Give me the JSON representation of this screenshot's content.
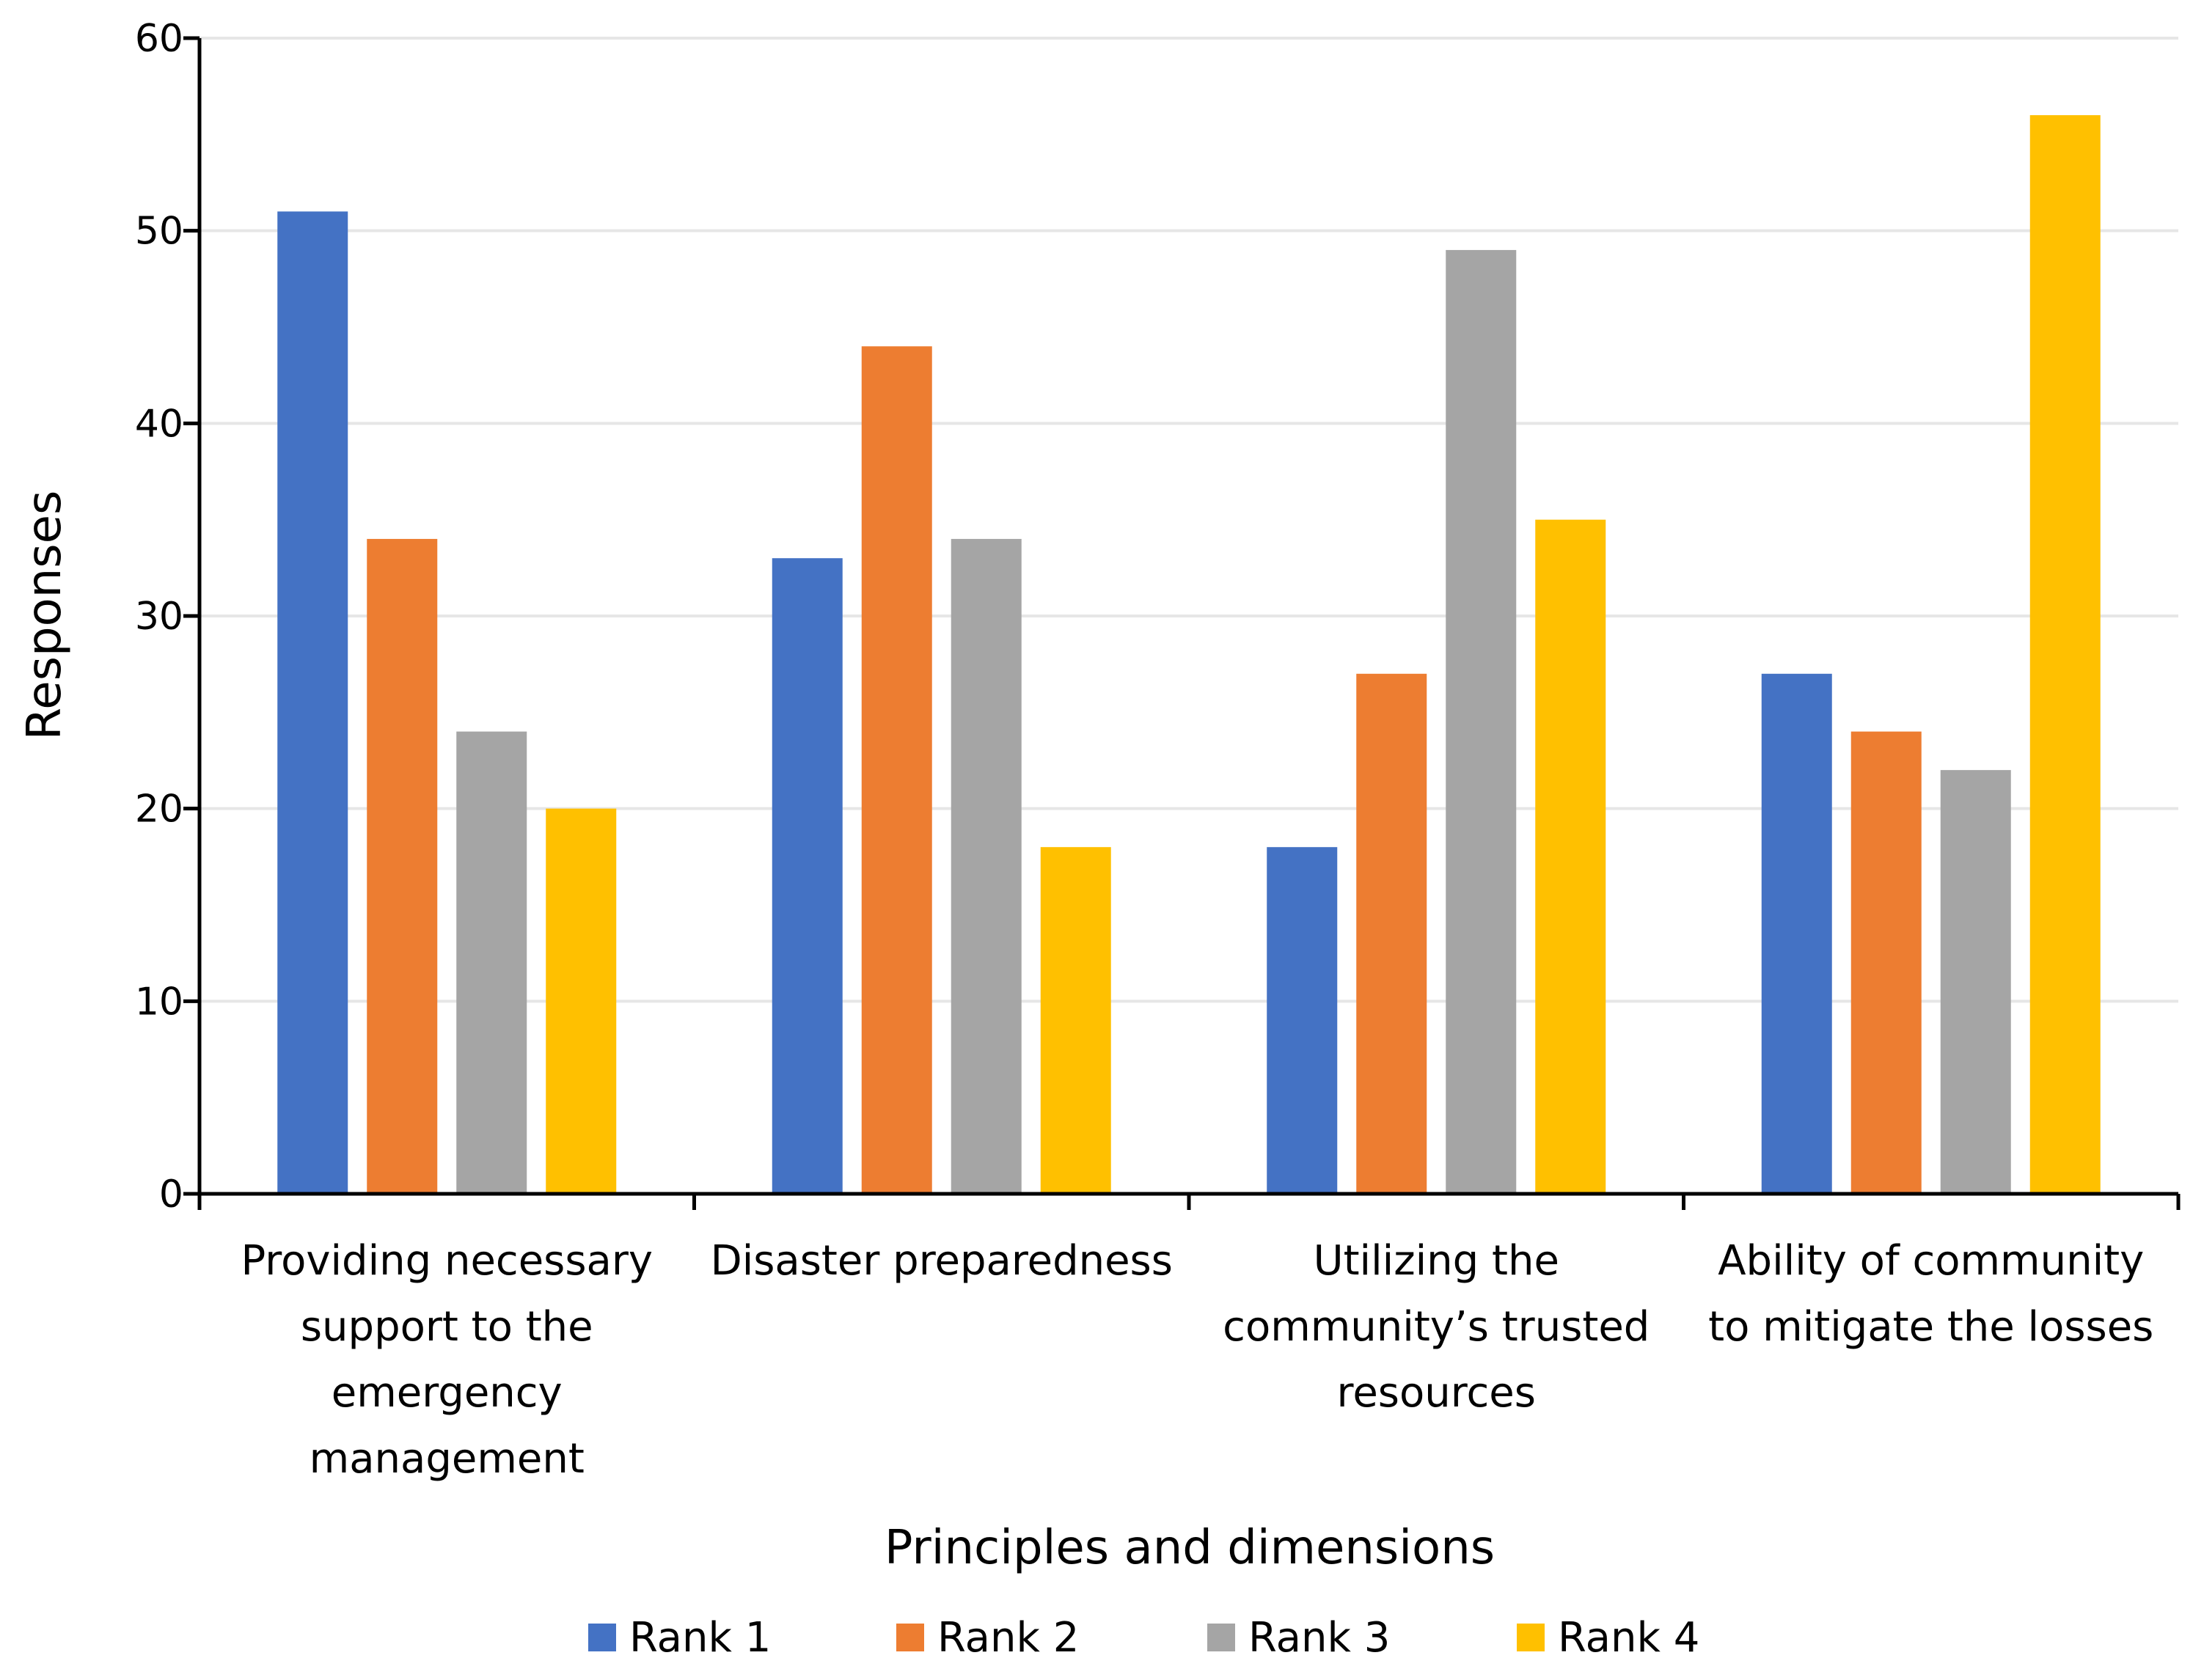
{
  "chart_data": {
    "type": "bar",
    "title": "",
    "xlabel": "Principles and dimensions",
    "ylabel": "Responses",
    "ylim": [
      0,
      60
    ],
    "yticks": [
      0,
      10,
      20,
      30,
      40,
      50,
      60
    ],
    "grid": true,
    "legend_position": "bottom",
    "categories": [
      [
        "Providing necessary",
        "support to the",
        "emergency",
        "management"
      ],
      [
        "Disaster preparedness"
      ],
      [
        "Utilizing the",
        "community’s trusted",
        "resources"
      ],
      [
        "Ability of community",
        "to mitigate the losses"
      ]
    ],
    "series": [
      {
        "name": "Rank 1",
        "color": "#4472C4",
        "values": [
          51,
          33,
          18,
          27
        ]
      },
      {
        "name": "Rank 2",
        "color": "#ED7D31",
        "values": [
          34,
          44,
          27,
          24
        ]
      },
      {
        "name": "Rank 3",
        "color": "#A5A5A5",
        "values": [
          24,
          34,
          49,
          22
        ]
      },
      {
        "name": "Rank 4",
        "color": "#FFC000",
        "values": [
          20,
          18,
          35,
          56
        ]
      }
    ]
  }
}
